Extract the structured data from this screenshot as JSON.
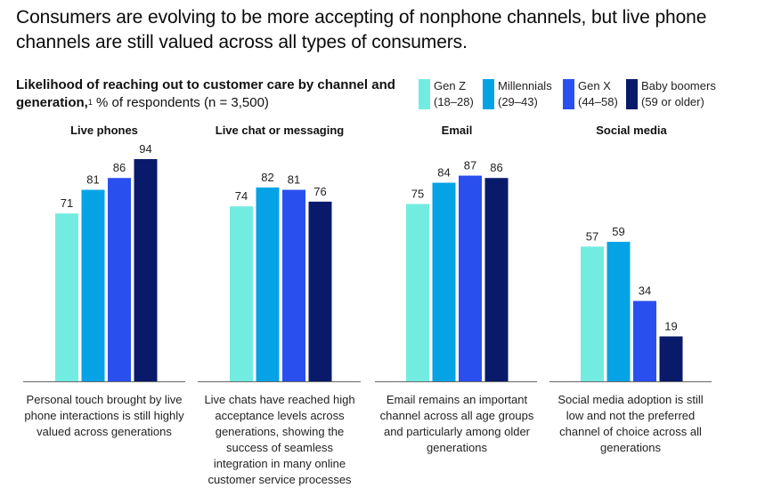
{
  "headline": "Consumers are evolving to be more accepting of nonphone channels, but live phone channels are still valued across all types of consumers.",
  "subtitle": {
    "bold": "Likelihood of reaching out to customer care by channel and generation,",
    "footnote": "1",
    "rest": " % of respondents (n = 3,500)"
  },
  "colors": {
    "gen_z": "#72ece0",
    "millennials": "#05a3e6",
    "gen_x": "#2a4fef",
    "baby_boomers": "#0a1a6a",
    "axis": "#666666"
  },
  "legend": [
    {
      "name": "Gen Z",
      "range": "(18–28)"
    },
    {
      "name": "Millennials",
      "range": "(29–43)"
    },
    {
      "name": "Gen X",
      "range": "(44–58)"
    },
    {
      "name": "Baby boomers",
      "range": "(59 or older)"
    }
  ],
  "chart_data": {
    "type": "bar",
    "title": "Likelihood of reaching out to customer care by channel and generation",
    "ylabel": "% of respondents",
    "ylim": [
      0,
      100
    ],
    "grid": false,
    "legend_position": "top-right",
    "series_names": [
      "Gen Z (18–28)",
      "Millennials (29–43)",
      "Gen X (44–58)",
      "Baby boomers (59 or older)"
    ],
    "panels": [
      {
        "category": "Live phones",
        "values": [
          71,
          81,
          86,
          94
        ],
        "note": "Personal touch brought by live phone interactions is still highly valued across generations"
      },
      {
        "category": "Live chat or messaging",
        "values": [
          74,
          82,
          81,
          76
        ],
        "note": "Live chats have reached high acceptance levels across generations, showing the success of seamless integration in many online customer service processes"
      },
      {
        "category": "Email",
        "values": [
          75,
          84,
          87,
          86
        ],
        "note": "Email remains an important channel across all age groups and particularly among older generations"
      },
      {
        "category": "Social media",
        "values": [
          57,
          59,
          34,
          19
        ],
        "note": "Social media adoption is still low and not the preferred channel of choice across all generations"
      }
    ]
  }
}
